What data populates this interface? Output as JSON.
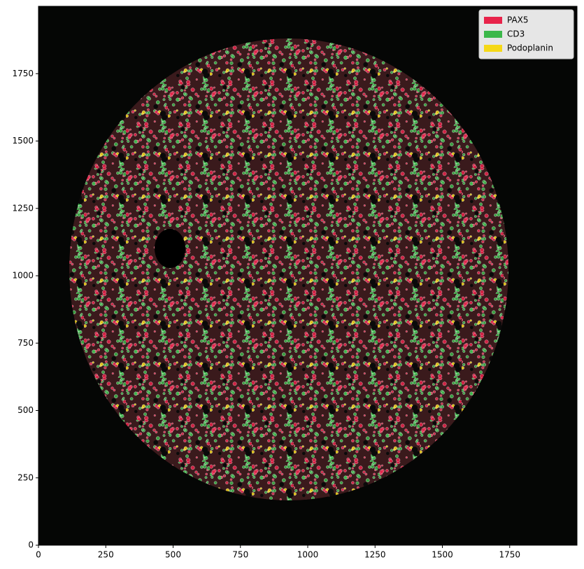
{
  "chart_data": {
    "type": "image",
    "xlim": [
      0,
      2000
    ],
    "ylim": [
      0,
      2000
    ],
    "xticks": [
      0,
      250,
      500,
      750,
      1000,
      1250,
      1500,
      1750
    ],
    "yticks": [
      0,
      250,
      500,
      750,
      1000,
      1250,
      1500,
      1750
    ],
    "legend": "upper right",
    "series": [
      {
        "name": "PAX5",
        "color": "#e8234a"
      },
      {
        "name": "CD3",
        "color": "#3cb84a"
      },
      {
        "name": "Podoplanin",
        "color": "#f5d817"
      }
    ]
  }
}
